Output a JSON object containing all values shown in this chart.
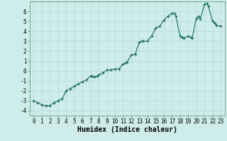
{
  "x": [
    0,
    0.5,
    1,
    1.5,
    2,
    2.5,
    3,
    3.5,
    4,
    4.5,
    5,
    5.5,
    6,
    6.5,
    7,
    7.2,
    7.5,
    7.8,
    8,
    8.5,
    9,
    9.5,
    10,
    10.5,
    11,
    11.3,
    11.5,
    12,
    12.5,
    13,
    13.3,
    13.5,
    14,
    14.5,
    15,
    15.5,
    16,
    16.5,
    17,
    17.3,
    17.5,
    18,
    18.3,
    18.5,
    19,
    19.3,
    19.5,
    20,
    20.3,
    20.5,
    21,
    21.3,
    21.5,
    22,
    22.3,
    22.5,
    23
  ],
  "y": [
    -3.0,
    -3.2,
    -3.4,
    -3.5,
    -3.5,
    -3.2,
    -3.0,
    -2.8,
    -2.0,
    -1.8,
    -1.5,
    -1.3,
    -1.1,
    -0.9,
    -0.5,
    -0.5,
    -0.6,
    -0.5,
    -0.4,
    -0.2,
    0.1,
    0.1,
    0.2,
    0.2,
    0.7,
    0.8,
    0.9,
    1.6,
    1.7,
    2.9,
    3.0,
    3.0,
    3.0,
    3.5,
    4.3,
    4.5,
    5.1,
    5.5,
    5.8,
    5.8,
    5.5,
    3.5,
    3.4,
    3.3,
    3.5,
    3.4,
    3.3,
    5.3,
    5.5,
    5.2,
    6.7,
    6.8,
    6.5,
    5.0,
    4.8,
    4.6,
    4.5
  ],
  "line_color": "#1a6b5a",
  "marker": "+",
  "marker_size": 2.5,
  "marker_lw": 0.8,
  "xlabel": "Humidex (Indice chaleur)",
  "xlim": [
    -0.5,
    23.5
  ],
  "ylim": [
    -4.5,
    7.0
  ],
  "xticks": [
    0,
    1,
    2,
    3,
    4,
    5,
    6,
    7,
    8,
    9,
    10,
    11,
    12,
    13,
    14,
    15,
    16,
    17,
    18,
    19,
    20,
    21,
    22,
    23
  ],
  "yticks": [
    -4,
    -3,
    -2,
    -1,
    0,
    1,
    2,
    3,
    4,
    5,
    6
  ],
  "bg_color": "#ceecea",
  "grid_color": "#b0d8d4",
  "tick_fontsize": 5.5,
  "xlabel_fontsize": 7.0,
  "linewidth": 0.8
}
